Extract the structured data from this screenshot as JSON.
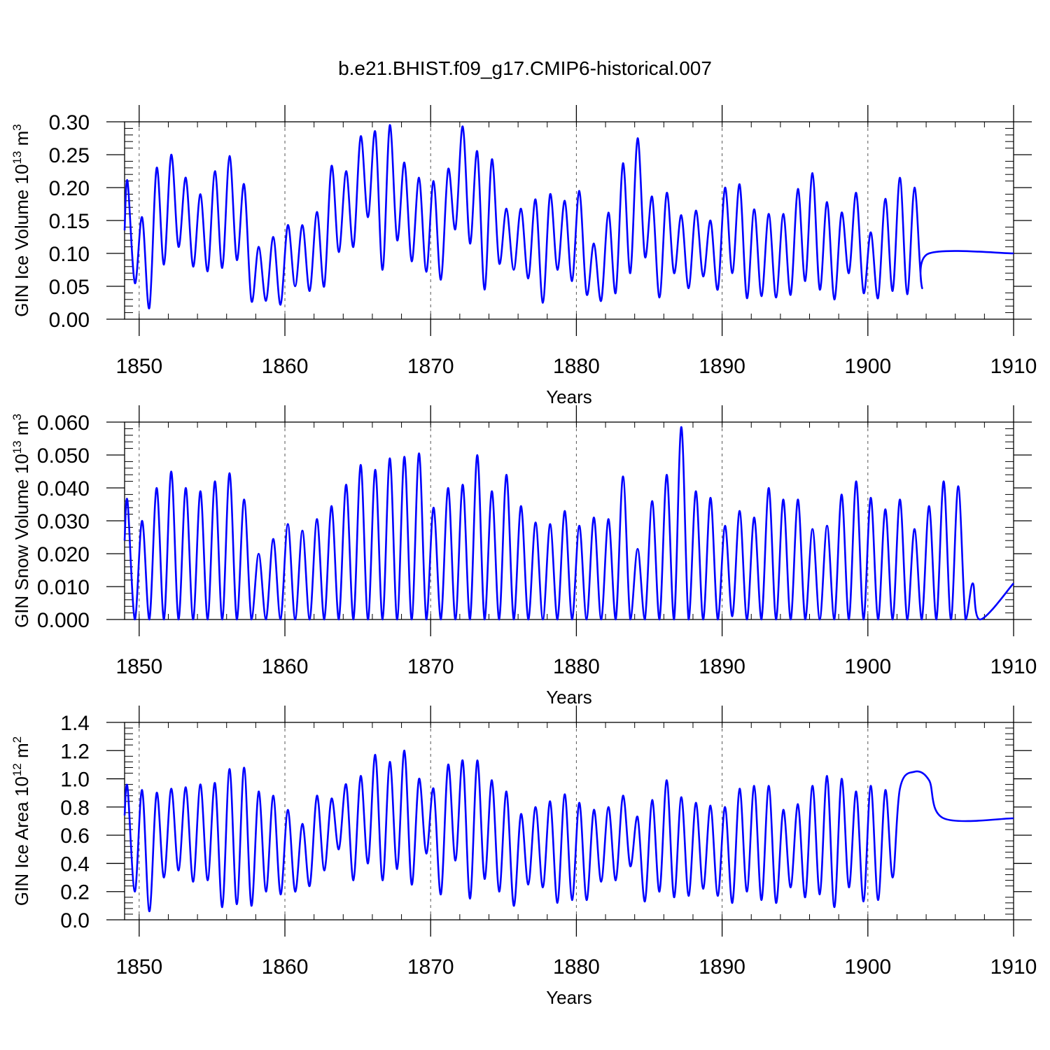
{
  "title": "b.e21.BHIST.f09_g17.CMIP6-historical.007",
  "line_color": "#0000ff",
  "chart_data": [
    {
      "type": "line",
      "id": "ice-volume",
      "ylabel_main": "GIN Ice Volume 10",
      "ylabel_exp": "13",
      "ylabel_unit": " m",
      "ylabel_unit_exp": "3",
      "xlabel": "Years",
      "xlim": [
        1849,
        1910
      ],
      "ylim": [
        0,
        0.3
      ],
      "xticks": [
        1850,
        1860,
        1870,
        1880,
        1890,
        1900,
        1910
      ],
      "xtick_labels": [
        "1850",
        "1860",
        "1870",
        "1880",
        "1890",
        "1900",
        "1910"
      ],
      "yticks": [
        0,
        0.05,
        0.1,
        0.15,
        0.2,
        0.25,
        0.3
      ],
      "ytick_labels": [
        "0.00",
        "0.05",
        "0.10",
        "0.15",
        "0.20",
        "0.25",
        "0.30"
      ],
      "x_start": 1849.0,
      "max": [
        0.21,
        0.155,
        0.23,
        0.25,
        0.215,
        0.19,
        0.225,
        0.248,
        0.205,
        0.11,
        0.125,
        0.143,
        0.143,
        0.163,
        0.233,
        0.225,
        0.278,
        0.285,
        0.295,
        0.238,
        0.215,
        0.21,
        0.228,
        0.293,
        0.255,
        0.243,
        0.168,
        0.168,
        0.182,
        0.19,
        0.18,
        0.195,
        0.115,
        0.162,
        0.237,
        0.275,
        0.186,
        0.192,
        0.158,
        0.165,
        0.15,
        0.2,
        0.205,
        0.167,
        0.16,
        0.16,
        0.198,
        0.222,
        0.178,
        0.162,
        0.192,
        0.132,
        0.183,
        0.215,
        0.2,
        0.1
      ],
      "min": [
        0.135,
        0.055,
        0.017,
        0.083,
        0.11,
        0.08,
        0.073,
        0.078,
        0.09,
        0.028,
        0.028,
        0.022,
        0.05,
        0.043,
        0.05,
        0.102,
        0.11,
        0.155,
        0.075,
        0.12,
        0.088,
        0.072,
        0.06,
        0.137,
        0.115,
        0.045,
        0.085,
        0.075,
        0.062,
        0.025,
        0.075,
        0.058,
        0.038,
        0.028,
        0.04,
        0.07,
        0.095,
        0.033,
        0.07,
        0.047,
        0.065,
        0.045,
        0.07,
        0.032,
        0.035,
        0.033,
        0.037,
        0.058,
        0.045,
        0.03,
        0.07,
        0.04,
        0.032,
        0.043,
        0.038,
        0.05
      ]
    },
    {
      "type": "line",
      "id": "snow-volume",
      "ylabel_main": "GIN Snow Volume 10",
      "ylabel_exp": "13",
      "ylabel_unit": " m",
      "ylabel_unit_exp": "3",
      "xlabel": "Years",
      "xlim": [
        1849,
        1910
      ],
      "ylim": [
        0,
        0.06
      ],
      "xticks": [
        1850,
        1860,
        1870,
        1880,
        1890,
        1900,
        1910
      ],
      "xtick_labels": [
        "1850",
        "1860",
        "1870",
        "1880",
        "1890",
        "1900",
        "1910"
      ],
      "yticks": [
        0,
        0.01,
        0.02,
        0.03,
        0.04,
        0.05,
        0.06
      ],
      "ytick_labels": [
        "0.000",
        "0.010",
        "0.020",
        "0.030",
        "0.040",
        "0.050",
        "0.060"
      ],
      "x_start": 1849.0,
      "max": [
        0.036,
        0.03,
        0.04,
        0.045,
        0.04,
        0.039,
        0.042,
        0.0445,
        0.0365,
        0.02,
        0.0245,
        0.029,
        0.027,
        0.0305,
        0.0345,
        0.041,
        0.047,
        0.0455,
        0.049,
        0.0495,
        0.0505,
        0.034,
        0.04,
        0.041,
        0.05,
        0.039,
        0.044,
        0.0345,
        0.0295,
        0.029,
        0.033,
        0.0285,
        0.031,
        0.0305,
        0.0435,
        0.0215,
        0.036,
        0.044,
        0.0585,
        0.039,
        0.037,
        0.0285,
        0.033,
        0.031,
        0.04,
        0.0365,
        0.0365,
        0.0275,
        0.0285,
        0.038,
        0.042,
        0.037,
        0.0335,
        0.0365,
        0.0275,
        0.0345,
        0.042,
        0.0405,
        0.011
      ],
      "min": [
        0.024,
        0.0,
        0.0,
        0.0,
        0.0,
        0.0,
        0.0,
        0.0,
        0.0,
        0.0,
        0.0,
        0.0,
        0.0,
        0.0,
        0.0,
        0.0,
        0.0,
        0.0,
        0.0,
        0.0,
        0.0,
        0.0,
        0.0,
        0.0,
        0.0,
        0.0,
        0.0,
        0.0,
        0.0,
        0.0,
        0.0,
        0.0,
        0.0,
        0.0,
        0.0,
        0.0,
        0.0,
        0.0,
        0.0,
        0.0,
        0.0,
        0.0,
        0.001,
        0.0,
        0.0,
        0.0,
        0.0,
        0.0,
        0.0,
        0.0,
        0.0,
        0.0,
        0.0,
        0.0,
        0.0,
        0.0,
        0.0,
        0.0,
        0.0,
        0.0
      ]
    },
    {
      "type": "line",
      "id": "ice-area",
      "ylabel_main": "GIN Ice Area 10",
      "ylabel_exp": "12",
      "ylabel_unit": " m",
      "ylabel_unit_exp": "2",
      "xlabel": "Years",
      "xlim": [
        1849,
        1910
      ],
      "ylim": [
        0,
        1.4
      ],
      "xticks": [
        1850,
        1860,
        1870,
        1880,
        1890,
        1900,
        1910
      ],
      "xtick_labels": [
        "1850",
        "1860",
        "1870",
        "1880",
        "1890",
        "1900",
        "1910"
      ],
      "yticks": [
        0,
        0.2,
        0.4,
        0.6,
        0.8,
        1.0,
        1.2,
        1.4
      ],
      "ytick_labels": [
        "0.0",
        "0.2",
        "0.4",
        "0.6",
        "0.8",
        "1.0",
        "1.2",
        "1.4"
      ],
      "x_start": 1849.0,
      "max": [
        0.94,
        0.92,
        0.9,
        0.93,
        0.94,
        0.96,
        0.97,
        1.07,
        1.08,
        0.91,
        0.88,
        0.78,
        0.68,
        0.88,
        0.86,
        0.96,
        1.02,
        1.17,
        1.12,
        1.2,
        1.0,
        0.93,
        1.1,
        1.13,
        1.13,
        0.99,
        0.91,
        0.75,
        0.8,
        0.84,
        0.89,
        0.83,
        0.78,
        0.8,
        0.88,
        0.73,
        0.85,
        0.99,
        0.87,
        0.83,
        0.81,
        0.8,
        0.93,
        0.95,
        0.95,
        0.78,
        0.82,
        0.95,
        1.02,
        1.0,
        0.91,
        0.95,
        0.92,
        0.93,
        1.05,
        0.99,
        0.72
      ],
      "min": [
        0.74,
        0.2,
        0.06,
        0.3,
        0.35,
        0.27,
        0.28,
        0.09,
        0.11,
        0.1,
        0.2,
        0.18,
        0.2,
        0.24,
        0.35,
        0.5,
        0.28,
        0.4,
        0.28,
        0.36,
        0.25,
        0.47,
        0.18,
        0.42,
        0.15,
        0.29,
        0.2,
        0.1,
        0.25,
        0.23,
        0.12,
        0.14,
        0.14,
        0.27,
        0.28,
        0.38,
        0.13,
        0.2,
        0.16,
        0.17,
        0.22,
        0.17,
        0.12,
        0.2,
        0.14,
        0.12,
        0.23,
        0.16,
        0.18,
        0.09,
        0.23,
        0.13,
        0.14,
        0.3
      ]
    }
  ]
}
